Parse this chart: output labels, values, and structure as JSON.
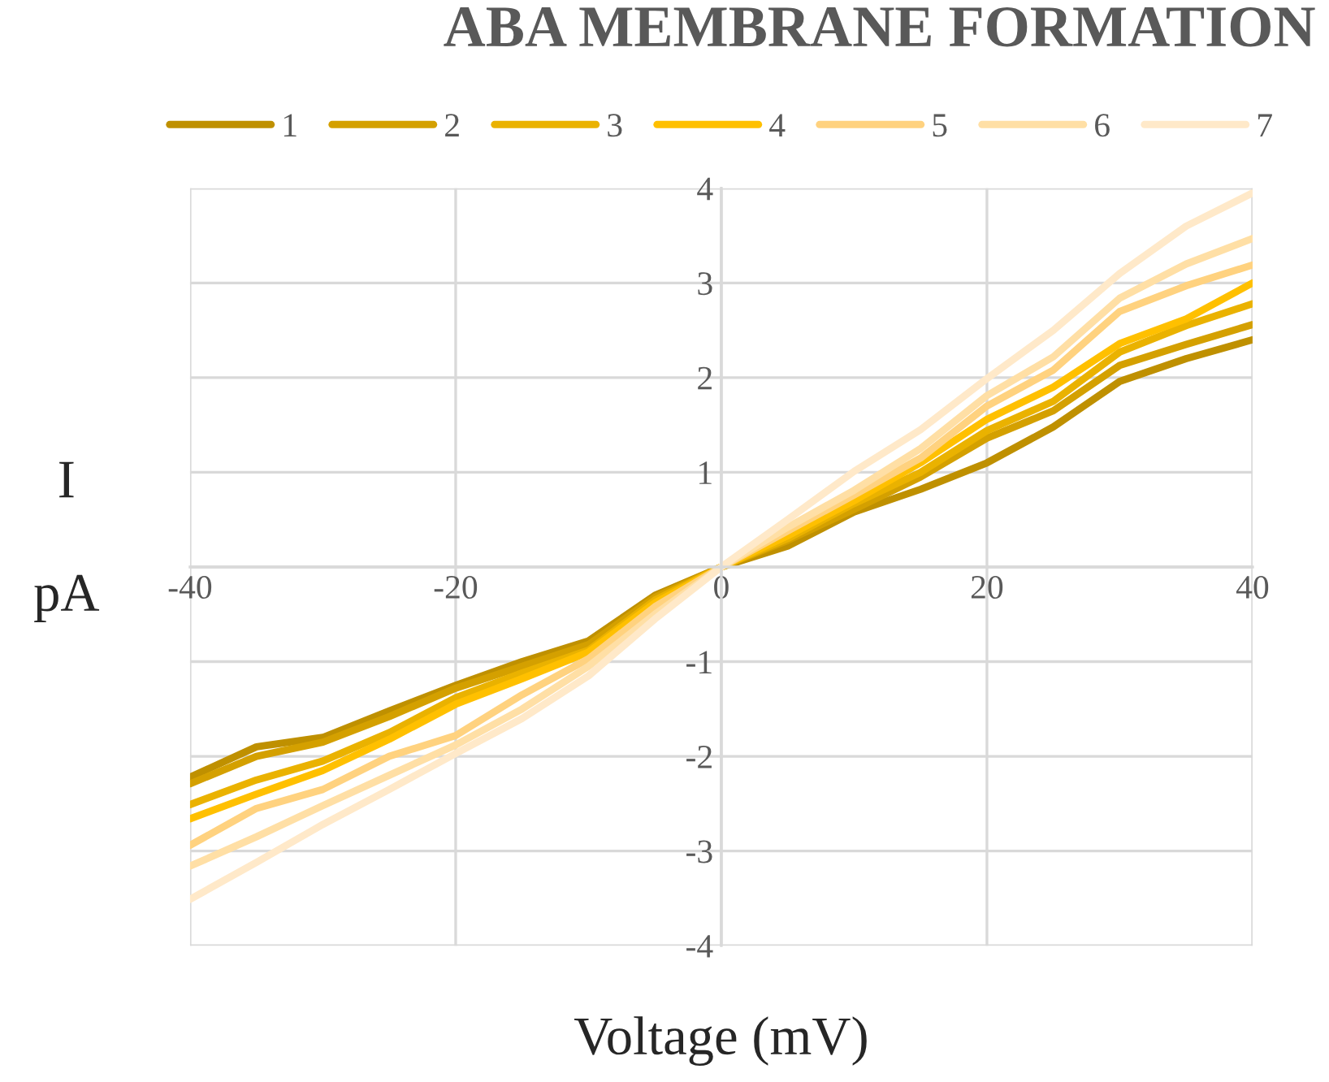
{
  "chart_data": {
    "type": "line",
    "title": "ABA MEMBRANE FORMATION",
    "xlabel": "Voltage (mV)",
    "ylabel": "I\n\npA",
    "x": [
      -40,
      -35,
      -30,
      -25,
      -20,
      -15,
      -10,
      -5,
      0,
      5,
      10,
      15,
      20,
      25,
      30,
      35,
      40
    ],
    "series": [
      {
        "name": "1",
        "color": "#bf9000",
        "values": [
          -2.22,
          -1.9,
          -1.8,
          -1.52,
          -1.25,
          -1.0,
          -0.78,
          -0.3,
          0,
          0.22,
          0.58,
          0.82,
          1.1,
          1.48,
          1.96,
          2.2,
          2.4
        ]
      },
      {
        "name": "2",
        "color": "#d4a000",
        "values": [
          -2.29,
          -2.0,
          -1.85,
          -1.58,
          -1.28,
          -1.05,
          -0.82,
          -0.32,
          0,
          0.28,
          0.61,
          0.95,
          1.36,
          1.65,
          2.13,
          2.35,
          2.56
        ]
      },
      {
        "name": "3",
        "color": "#eab200",
        "values": [
          -2.51,
          -2.25,
          -2.05,
          -1.75,
          -1.38,
          -1.12,
          -0.88,
          -0.35,
          0,
          0.3,
          0.67,
          1.0,
          1.44,
          1.75,
          2.27,
          2.55,
          2.78
        ]
      },
      {
        "name": "4",
        "color": "#ffc000",
        "values": [
          -2.66,
          -2.4,
          -2.15,
          -1.82,
          -1.45,
          -1.18,
          -0.9,
          -0.38,
          0,
          0.33,
          0.7,
          1.1,
          1.56,
          1.9,
          2.36,
          2.62,
          3.0
        ]
      },
      {
        "name": "5",
        "color": "#ffd27f",
        "values": [
          -2.94,
          -2.55,
          -2.35,
          -2.0,
          -1.78,
          -1.35,
          -0.97,
          -0.42,
          0,
          0.38,
          0.76,
          1.15,
          1.7,
          2.08,
          2.7,
          2.97,
          3.19
        ]
      },
      {
        "name": "6",
        "color": "#ffdfa5",
        "values": [
          -3.16,
          -2.85,
          -2.52,
          -2.2,
          -1.88,
          -1.5,
          -1.05,
          -0.5,
          0,
          0.42,
          0.81,
          1.25,
          1.81,
          2.22,
          2.84,
          3.2,
          3.47
        ]
      },
      {
        "name": "7",
        "color": "#ffe9c9",
        "values": [
          -3.51,
          -3.12,
          -2.72,
          -2.35,
          -1.97,
          -1.6,
          -1.15,
          -0.55,
          0,
          0.5,
          1.01,
          1.45,
          1.99,
          2.5,
          3.1,
          3.6,
          3.95
        ]
      }
    ],
    "xlim": [
      -40,
      40
    ],
    "ylim": [
      -4,
      4
    ],
    "xticks": [
      -40,
      -20,
      0,
      20,
      40
    ],
    "yticks": [
      -4,
      -3,
      -2,
      -1,
      {
        "value": 0,
        "label": null
      },
      1,
      2,
      3,
      4
    ],
    "grid": true,
    "legend": "top",
    "marker": "none",
    "line_style": "solid"
  }
}
